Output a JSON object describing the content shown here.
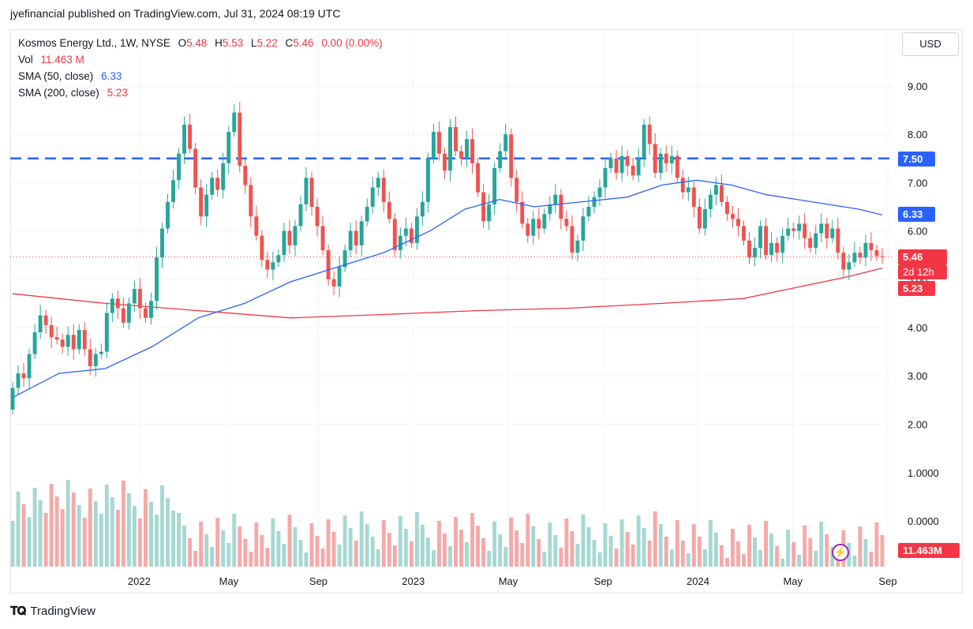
{
  "publisher": "jyefinancial published on TradingView.com, Jul 31, 2024 08:19 UTC",
  "legend": {
    "symbol": "Kosmos Energy Ltd., 1W, NYSE",
    "open_label": "O",
    "open": "5.48",
    "high_label": "H",
    "high": "5.53",
    "low_label": "L",
    "low": "5.22",
    "close_label": "C",
    "close": "5.46",
    "change": "0.00 (0.00%)",
    "vol_label": "Vol",
    "vol": "11.463 M",
    "sma50_label": "SMA (50, close)",
    "sma50": "6.33",
    "sma200_label": "SMA (200, close)",
    "sma200": "5.23"
  },
  "currency": "USD",
  "footer": "TradingView",
  "badges": {
    "level_line": "7.50",
    "sma50": "6.33",
    "price": "5.46",
    "countdown": "2d 12h",
    "sma200": "5.23",
    "volume": "11.463M"
  },
  "colors": {
    "up": "#26a69a",
    "down": "#ef5350",
    "vol_up": "#a6d8d1",
    "vol_down": "#f5a9a8",
    "sma50": "#2962ff",
    "sma200": "#f23645",
    "level": "#2962ff"
  },
  "chart_data": {
    "type": "candlestick",
    "timeframe": "1W",
    "price_axis": {
      "ticks": [
        "9.00",
        "8.00",
        "7.00",
        "6.00",
        "5.00",
        "4.00",
        "3.00",
        "2.00"
      ],
      "range": [
        2.2,
        9.4
      ]
    },
    "volume_axis": {
      "ticks": [
        "1.0000",
        "0.0000"
      ]
    },
    "time_axis": {
      "ticks": [
        "2022",
        "May",
        "Sep",
        "2023",
        "May",
        "Sep",
        "2024",
        "May",
        "Sep"
      ]
    },
    "horizontal_line": 7.5,
    "candles": [
      [
        2.3,
        2.75
      ],
      [
        2.75,
        3.05
      ],
      [
        3.05,
        2.95
      ],
      [
        2.95,
        3.45
      ],
      [
        3.45,
        3.9
      ],
      [
        3.9,
        4.25
      ],
      [
        4.25,
        4.05
      ],
      [
        4.05,
        3.8
      ],
      [
        3.8,
        3.75
      ],
      [
        3.75,
        3.6
      ],
      [
        3.6,
        3.85
      ],
      [
        3.85,
        3.55
      ],
      [
        3.55,
        3.95
      ],
      [
        3.95,
        3.55
      ],
      [
        3.55,
        3.2
      ],
      [
        3.2,
        3.45
      ],
      [
        3.45,
        3.5
      ],
      [
        3.5,
        4.3
      ],
      [
        4.3,
        4.6
      ],
      [
        4.6,
        4.4
      ],
      [
        4.4,
        4.1
      ],
      [
        4.1,
        4.5
      ],
      [
        4.5,
        4.8
      ],
      [
        4.8,
        4.4
      ],
      [
        4.4,
        4.2
      ],
      [
        4.2,
        4.55
      ],
      [
        4.55,
        5.45
      ],
      [
        5.45,
        6.05
      ],
      [
        6.05,
        6.6
      ],
      [
        6.6,
        7.05
      ],
      [
        7.05,
        7.6
      ],
      [
        7.6,
        8.2
      ],
      [
        8.2,
        7.7
      ],
      [
        7.7,
        6.9
      ],
      [
        6.9,
        6.3
      ],
      [
        6.3,
        6.75
      ],
      [
        6.75,
        7.1
      ],
      [
        7.1,
        6.85
      ],
      [
        6.85,
        7.4
      ],
      [
        7.4,
        8.05
      ],
      [
        8.05,
        8.45
      ],
      [
        8.45,
        7.35
      ],
      [
        7.35,
        6.95
      ],
      [
        6.95,
        6.3
      ],
      [
        6.3,
        5.9
      ],
      [
        5.9,
        5.4
      ],
      [
        5.4,
        5.2
      ],
      [
        5.2,
        5.35
      ],
      [
        5.35,
        5.5
      ],
      [
        5.5,
        6.0
      ],
      [
        6.0,
        5.7
      ],
      [
        5.7,
        6.1
      ],
      [
        6.1,
        6.55
      ],
      [
        6.55,
        7.1
      ],
      [
        7.1,
        6.5
      ],
      [
        6.5,
        6.1
      ],
      [
        6.1,
        5.6
      ],
      [
        5.6,
        5.0
      ],
      [
        5.0,
        4.85
      ],
      [
        4.85,
        5.25
      ],
      [
        5.25,
        5.6
      ],
      [
        5.6,
        6.0
      ],
      [
        6.0,
        5.7
      ],
      [
        5.7,
        6.2
      ],
      [
        6.2,
        6.5
      ],
      [
        6.5,
        6.9
      ],
      [
        6.9,
        7.1
      ],
      [
        7.1,
        6.6
      ],
      [
        6.6,
        6.25
      ],
      [
        6.25,
        5.6
      ],
      [
        5.6,
        5.9
      ],
      [
        5.9,
        6.05
      ],
      [
        6.05,
        5.75
      ],
      [
        5.75,
        6.3
      ],
      [
        6.3,
        6.6
      ],
      [
        6.6,
        7.5
      ],
      [
        7.5,
        8.05
      ],
      [
        8.05,
        7.6
      ],
      [
        7.6,
        7.25
      ],
      [
        7.25,
        8.15
      ],
      [
        8.15,
        7.65
      ],
      [
        7.65,
        7.5
      ],
      [
        7.5,
        7.9
      ],
      [
        7.9,
        7.4
      ],
      [
        7.4,
        6.8
      ],
      [
        6.8,
        6.2
      ],
      [
        6.2,
        6.55
      ],
      [
        6.55,
        7.3
      ],
      [
        7.3,
        7.65
      ],
      [
        7.65,
        8.0
      ],
      [
        8.0,
        7.1
      ],
      [
        7.1,
        6.6
      ],
      [
        6.6,
        6.15
      ],
      [
        6.15,
        5.9
      ],
      [
        5.9,
        6.25
      ],
      [
        6.25,
        6.05
      ],
      [
        6.05,
        6.35
      ],
      [
        6.35,
        6.55
      ],
      [
        6.55,
        6.75
      ],
      [
        6.75,
        6.25
      ],
      [
        6.25,
        6.1
      ],
      [
        6.1,
        5.55
      ],
      [
        5.55,
        5.8
      ],
      [
        5.8,
        6.3
      ],
      [
        6.3,
        6.5
      ],
      [
        6.5,
        6.7
      ],
      [
        6.7,
        6.9
      ],
      [
        6.9,
        7.3
      ],
      [
        7.3,
        7.5
      ],
      [
        7.5,
        7.2
      ],
      [
        7.2,
        7.55
      ],
      [
        7.55,
        7.35
      ],
      [
        7.35,
        7.15
      ],
      [
        7.15,
        7.5
      ],
      [
        7.5,
        8.2
      ],
      [
        8.2,
        7.8
      ],
      [
        7.8,
        7.2
      ],
      [
        7.2,
        7.6
      ],
      [
        7.6,
        7.4
      ],
      [
        7.4,
        7.55
      ],
      [
        7.55,
        7.1
      ],
      [
        7.1,
        6.8
      ],
      [
        6.8,
        6.9
      ],
      [
        6.9,
        6.5
      ],
      [
        6.5,
        6.05
      ],
      [
        6.05,
        6.45
      ],
      [
        6.45,
        6.75
      ],
      [
        6.75,
        6.95
      ],
      [
        6.95,
        6.6
      ],
      [
        6.6,
        6.35
      ],
      [
        6.35,
        6.25
      ],
      [
        6.25,
        6.1
      ],
      [
        6.1,
        5.8
      ],
      [
        5.8,
        5.45
      ],
      [
        5.45,
        5.65
      ],
      [
        5.65,
        6.1
      ],
      [
        6.1,
        5.5
      ],
      [
        5.5,
        5.75
      ],
      [
        5.75,
        5.55
      ],
      [
        5.55,
        5.9
      ],
      [
        5.9,
        6.05
      ],
      [
        6.05,
        6.0
      ],
      [
        6.0,
        6.15
      ],
      [
        6.15,
        5.85
      ],
      [
        5.85,
        5.65
      ],
      [
        5.65,
        5.95
      ],
      [
        5.95,
        6.15
      ],
      [
        6.15,
        5.85
      ],
      [
        5.85,
        6.05
      ],
      [
        6.05,
        5.55
      ],
      [
        5.55,
        5.2
      ],
      [
        5.2,
        5.35
      ],
      [
        5.35,
        5.55
      ],
      [
        5.55,
        5.45
      ],
      [
        5.45,
        5.75
      ],
      [
        5.75,
        5.6
      ],
      [
        5.6,
        5.48
      ],
      [
        5.48,
        5.46
      ]
    ],
    "sma50": [
      [
        0,
        2.55
      ],
      [
        8,
        3.05
      ],
      [
        16,
        3.15
      ],
      [
        24,
        3.6
      ],
      [
        32,
        4.2
      ],
      [
        40,
        4.5
      ],
      [
        48,
        4.95
      ],
      [
        56,
        5.25
      ],
      [
        64,
        5.55
      ],
      [
        72,
        6.0
      ],
      [
        78,
        6.45
      ],
      [
        84,
        6.65
      ],
      [
        90,
        6.5
      ],
      [
        98,
        6.6
      ],
      [
        106,
        6.7
      ],
      [
        112,
        6.95
      ],
      [
        118,
        7.05
      ],
      [
        124,
        6.95
      ],
      [
        130,
        6.75
      ],
      [
        138,
        6.6
      ],
      [
        146,
        6.45
      ],
      [
        150,
        6.33
      ]
    ],
    "sma200": [
      [
        0,
        4.7
      ],
      [
        16,
        4.5
      ],
      [
        32,
        4.35
      ],
      [
        48,
        4.2
      ],
      [
        64,
        4.27
      ],
      [
        80,
        4.35
      ],
      [
        96,
        4.4
      ],
      [
        112,
        4.5
      ],
      [
        126,
        4.6
      ],
      [
        136,
        4.85
      ],
      [
        144,
        5.05
      ],
      [
        150,
        5.23
      ]
    ]
  }
}
